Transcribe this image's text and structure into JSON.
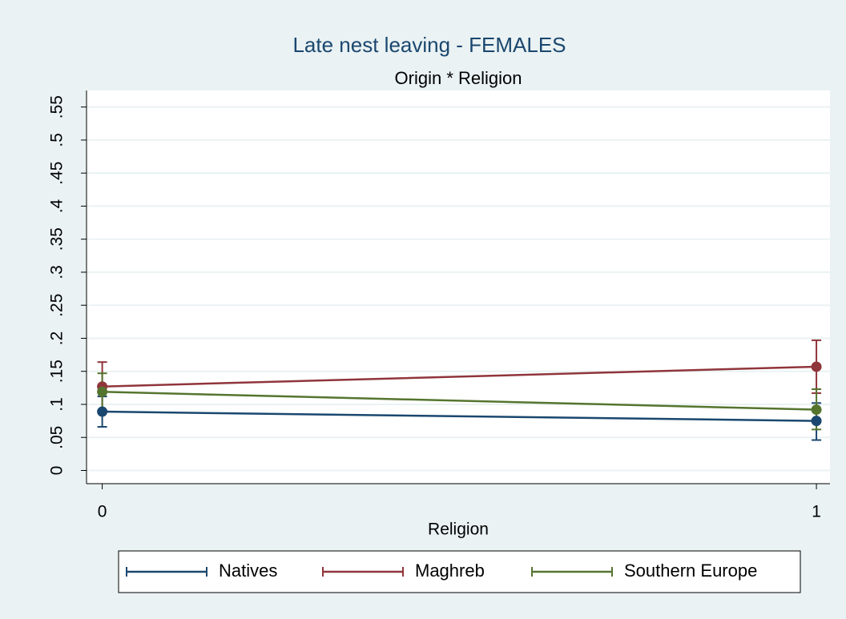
{
  "chart_data": {
    "type": "line",
    "title": "Late nest leaving - FEMALES",
    "subtitle": "Origin * Religion",
    "x_label": "Religion",
    "x": [
      0,
      1
    ],
    "xlim": [
      -0.022,
      1.019
    ],
    "xticks": [
      0,
      1
    ],
    "ylim": [
      -0.02,
      0.575
    ],
    "yticks": [
      0,
      {
        "value": 0.05,
        "label": ".05"
      },
      {
        "value": 0.1,
        "label": ".1"
      },
      {
        "value": 0.15,
        "label": ".15"
      },
      {
        "value": 0.2,
        "label": ".2"
      },
      {
        "value": 0.25,
        "label": ".25"
      },
      {
        "value": 0.3,
        "label": ".3"
      },
      {
        "value": 0.35,
        "label": ".35"
      },
      {
        "value": 0.4,
        "label": ".4"
      },
      {
        "value": 0.45,
        "label": ".45"
      },
      {
        "value": 0.5,
        "label": ".5"
      },
      {
        "value": 0.55,
        "label": ".55"
      }
    ],
    "grid": true,
    "legend": "bottom",
    "series": [
      {
        "name": "Natives",
        "color": "#1a476f",
        "values": [
          0.089,
          0.075
        ],
        "lower": [
          0.066,
          0.046
        ],
        "upper": [
          0.112,
          0.102
        ]
      },
      {
        "name": "Maghreb",
        "color": "#90353b",
        "values": [
          0.127,
          0.157
        ],
        "lower": [
          0.091,
          0.117
        ],
        "upper": [
          0.164,
          0.197
        ]
      },
      {
        "name": "Southern Europe",
        "color": "#55752f",
        "values": [
          0.119,
          0.092
        ],
        "lower": [
          0.091,
          0.062
        ],
        "upper": [
          0.147,
          0.123
        ]
      }
    ]
  }
}
